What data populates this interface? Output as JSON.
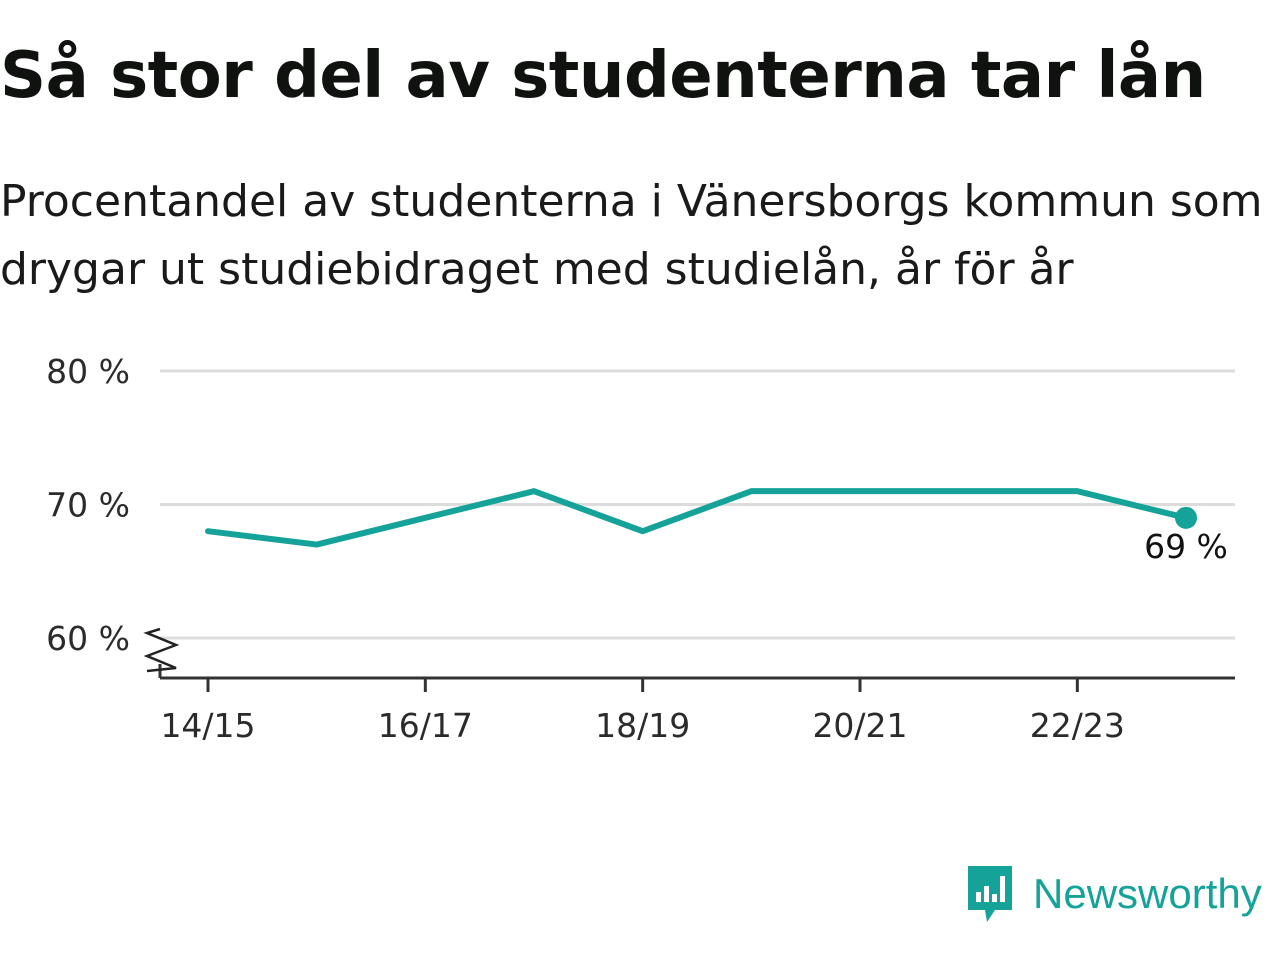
{
  "title": "Så stor del av studenterna tar lån",
  "subtitle": "Procentandel av studenterna i Vänersborgs kommun som drygar ut studiebidraget med studielån, år för år",
  "brand": {
    "name": "Newsworthy",
    "logo_icon": "bar-chart-speech-bubble-icon",
    "color": "#15a399"
  },
  "chart_data": {
    "type": "line",
    "x": [
      "14/15",
      "15/16",
      "16/17",
      "17/18",
      "18/19",
      "19/20",
      "20/21",
      "21/22",
      "22/23",
      "23/24"
    ],
    "series": [
      {
        "values": [
          68,
          67,
          69,
          71,
          68,
          71,
          71,
          71,
          71,
          69
        ],
        "color": "#15a399"
      }
    ],
    "x_tick_labels": [
      "14/15",
      "16/17",
      "18/19",
      "20/21",
      "22/23"
    ],
    "y_ticks": [
      60,
      70,
      80
    ],
    "y_tick_labels": [
      "60 %",
      "70 %",
      "80 %"
    ],
    "ylim": [
      57,
      80
    ],
    "grid": true,
    "axis_break": true,
    "last_point_label": "69 %",
    "xlabel": "",
    "ylabel": ""
  }
}
